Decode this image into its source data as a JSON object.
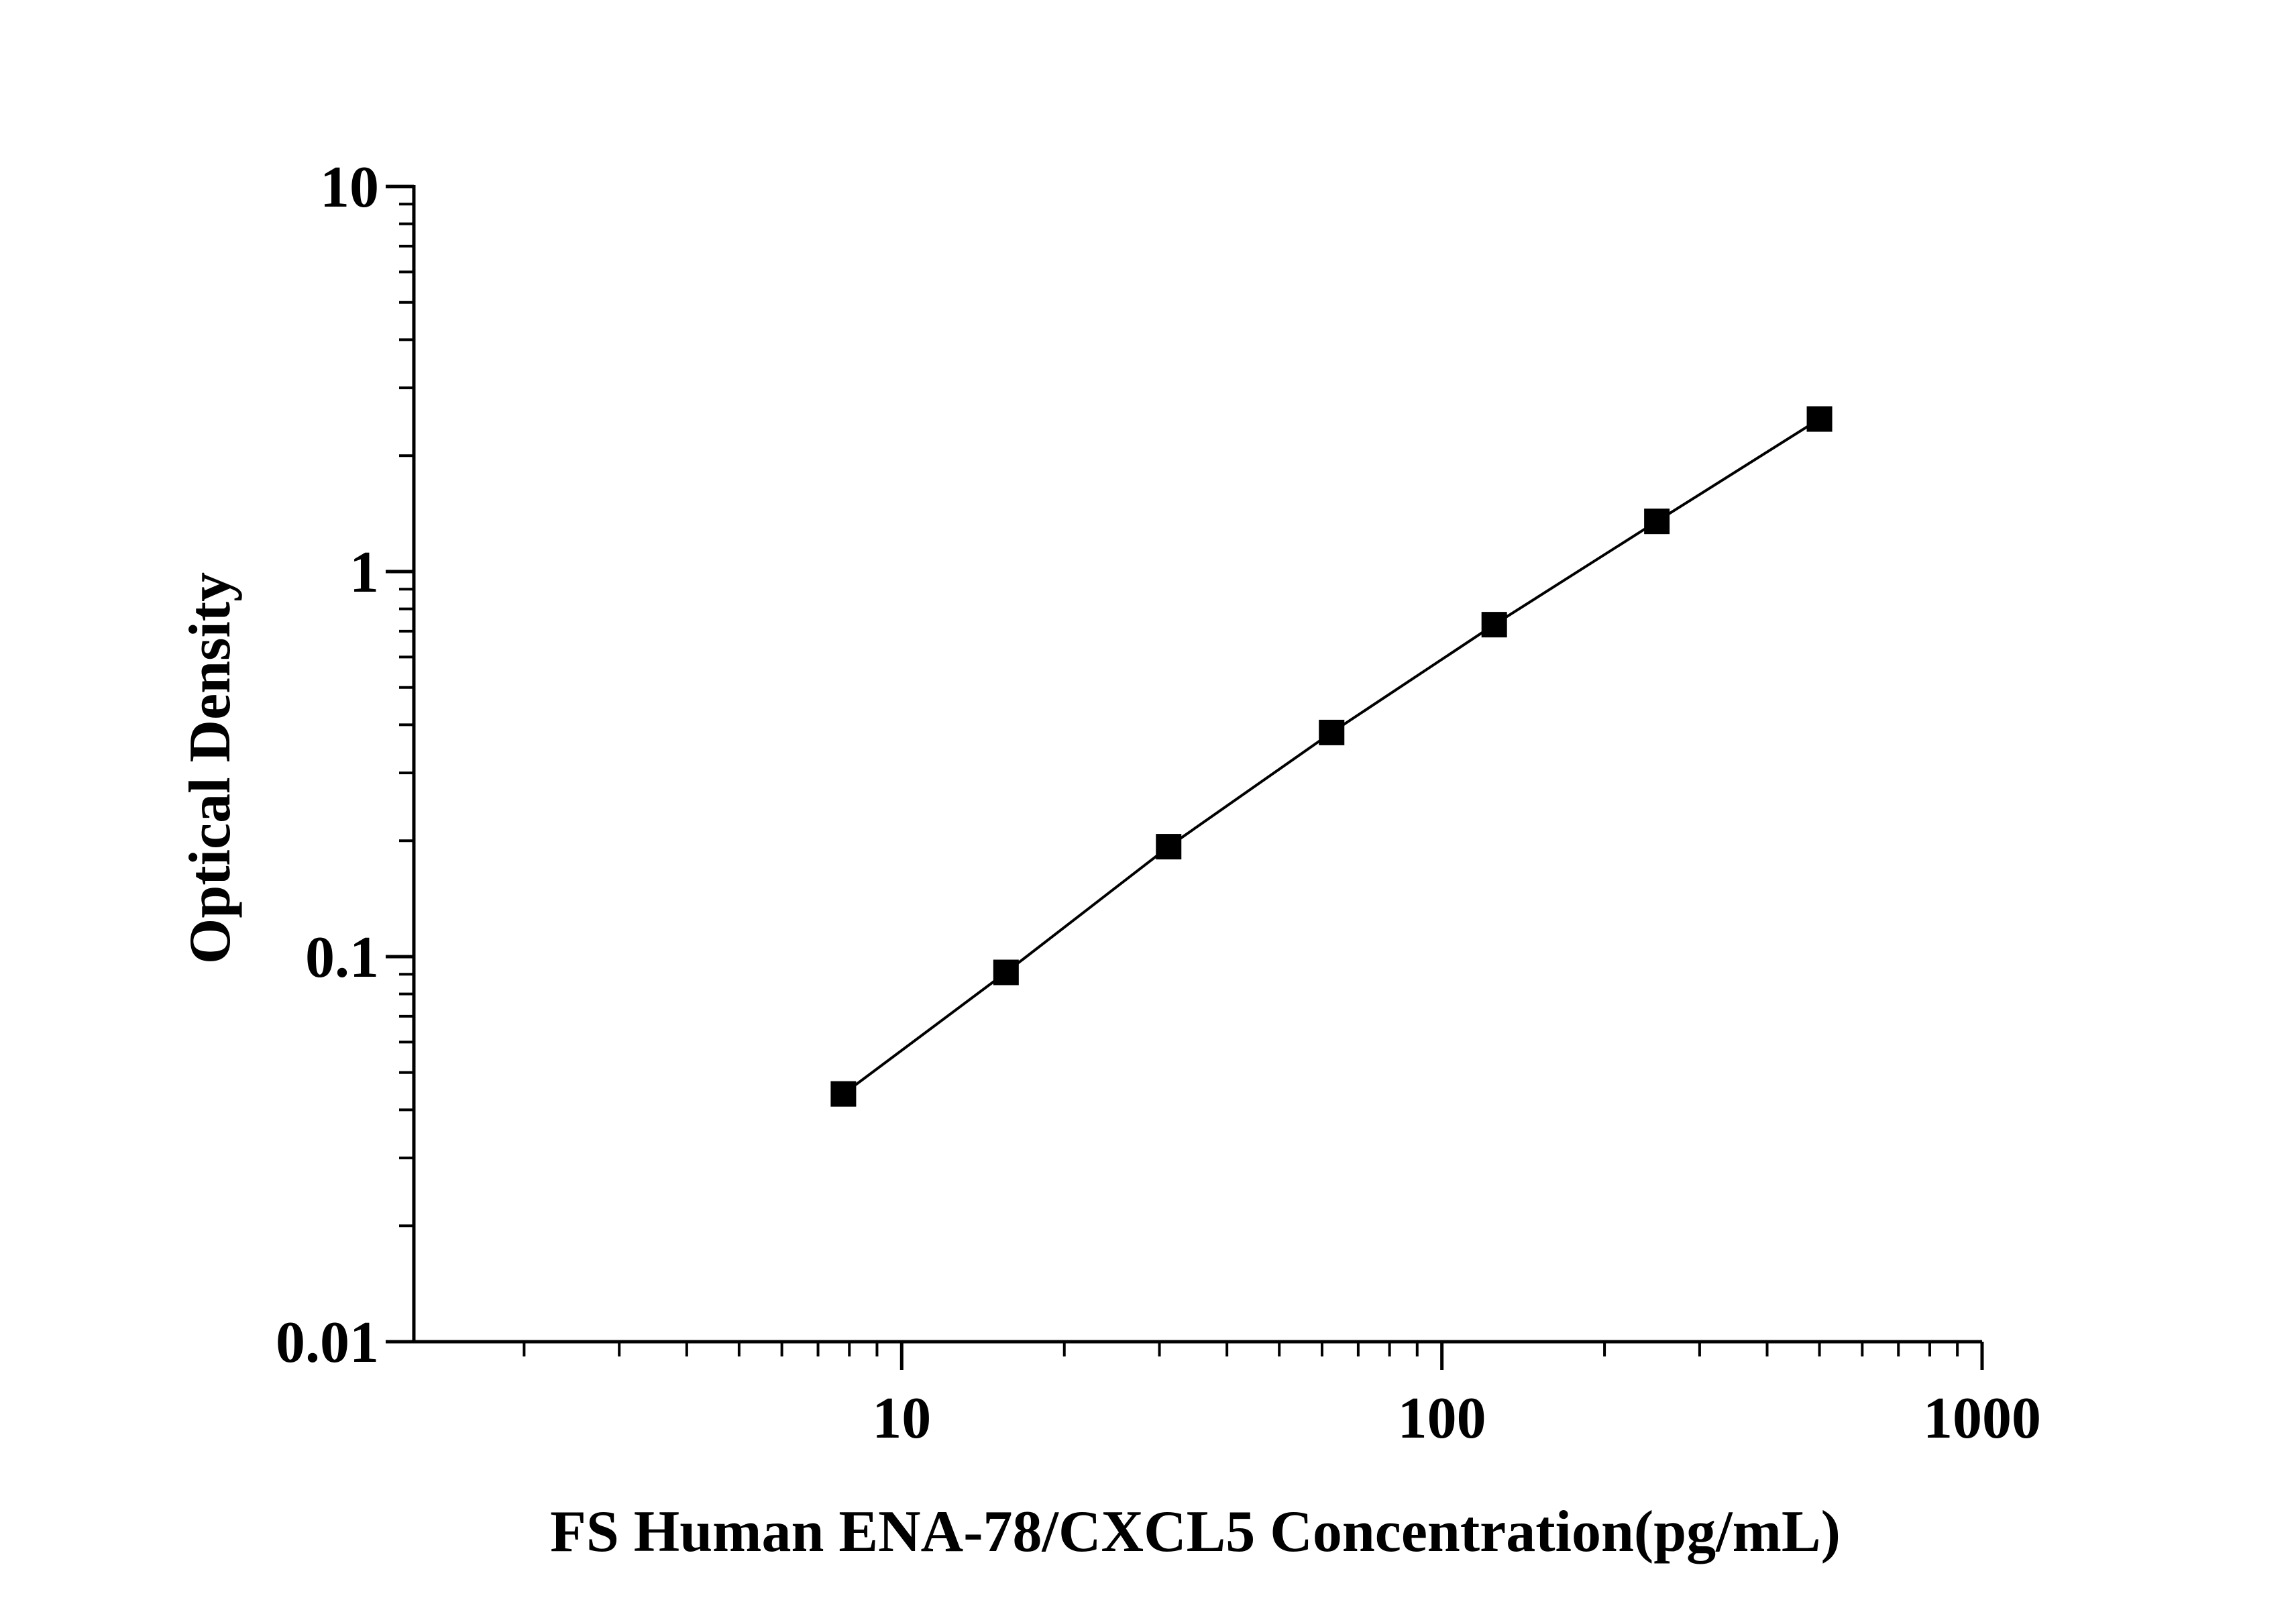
{
  "chart_data": {
    "type": "scatter",
    "title": "",
    "xlabel": "FS Human ENA-78/CXCL5 Concentration(pg/mL)",
    "ylabel": "Optical Density",
    "x_scale": "log",
    "y_scale": "log",
    "xlim": [
      1.25,
      1000
    ],
    "ylim": [
      0.01,
      10
    ],
    "x_ticks": [
      {
        "value": 10,
        "label": "10"
      },
      {
        "value": 100,
        "label": "100"
      },
      {
        "value": 1000,
        "label": "1000"
      }
    ],
    "y_ticks": [
      {
        "value": 10,
        "label": "10"
      },
      {
        "value": 1,
        "label": "1"
      },
      {
        "value": 0.1,
        "label": "0.1"
      },
      {
        "value": 0.01,
        "label": "0.01"
      }
    ],
    "grid": false,
    "legend": "none",
    "marker": "square",
    "color": "#000000",
    "series": [
      {
        "x": [
          7.8,
          15.6,
          31.2,
          62.5,
          125,
          250,
          500
        ],
        "y": [
          0.044,
          0.091,
          0.193,
          0.382,
          0.728,
          1.35,
          2.49
        ],
        "fit_line": true
      }
    ]
  }
}
